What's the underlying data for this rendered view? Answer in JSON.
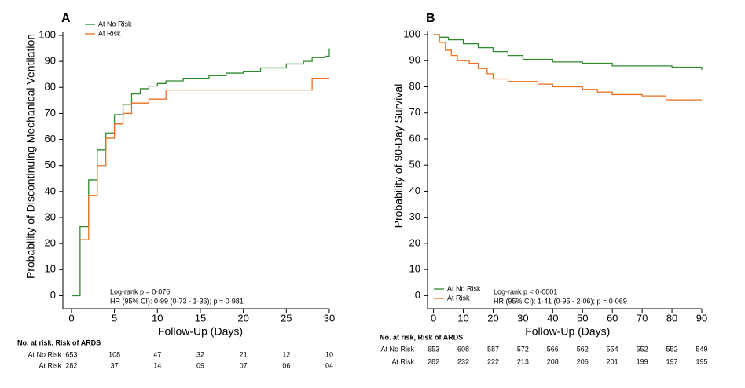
{
  "chart_data": [
    {
      "type": "step",
      "panel_label": "A",
      "x_label": "Follow-Up (Days)",
      "y_label": "Probability of Discontinuing Mechanical Ventilation",
      "xlim": [
        -1,
        30
      ],
      "ylim": [
        -5,
        100
      ],
      "xticks": [
        0,
        5,
        10,
        15,
        20,
        25,
        30
      ],
      "yticks": [
        0,
        10,
        20,
        30,
        40,
        50,
        60,
        70,
        80,
        90,
        100
      ],
      "legend": "top-left",
      "annotations": [
        "Log-rank p = 0·076",
        "HR (95% CI): 0·99 (0·73 - 1·36); p = 0·981"
      ],
      "series": [
        {
          "name": "At No Risk",
          "color": "#2e8b2e",
          "x": [
            0,
            1,
            2,
            3,
            4,
            5,
            6,
            7,
            8,
            9,
            10,
            11,
            13,
            16,
            18,
            20,
            22,
            25,
            27,
            28,
            29.5,
            30
          ],
          "values": [
            0,
            26.5,
            44.5,
            56,
            62.5,
            69.5,
            73.5,
            77.5,
            79.5,
            80.5,
            81.5,
            82.5,
            83.5,
            84.5,
            85.5,
            86,
            87.5,
            89,
            90,
            91.5,
            92,
            95
          ]
        },
        {
          "name": "At Risk",
          "color": "#e8701f",
          "x": [
            1,
            2,
            3,
            4,
            5,
            6,
            7,
            9,
            11,
            28,
            30
          ],
          "values": [
            21.5,
            38.5,
            50,
            60.5,
            66,
            70,
            74,
            75.5,
            79,
            83.5,
            83.5
          ]
        }
      ],
      "risk_table": {
        "title": "No. at risk, Risk of ARDS",
        "rows": [
          {
            "name": "At No Risk",
            "values": [
              "653",
              "108",
              "47",
              "32",
              "21",
              "12",
              "10"
            ]
          },
          {
            "name": "At Risk",
            "values": [
              "282",
              "37",
              "14",
              "09",
              "07",
              "06",
              "04"
            ]
          }
        ]
      }
    },
    {
      "type": "step",
      "panel_label": "B",
      "x_label": "Follow-Up (Days)",
      "y_label": "Probability of 90-Day Survival",
      "xlim": [
        -2,
        90
      ],
      "ylim": [
        -5,
        100
      ],
      "xticks": [
        0,
        10,
        20,
        30,
        40,
        50,
        60,
        70,
        80,
        90
      ],
      "yticks": [
        0,
        10,
        20,
        30,
        40,
        50,
        60,
        70,
        80,
        90,
        100
      ],
      "legend": "bottom-left",
      "annotations": [
        "Log-rank p < 0·0001",
        "HR (95% CI): 1·41 (0·95 - 2·06); p = 0·069"
      ],
      "series": [
        {
          "name": "At No Risk",
          "color": "#2e8b2e",
          "x": [
            0,
            2,
            5,
            10,
            15,
            20,
            25,
            30,
            40,
            50,
            60,
            80,
            88,
            90
          ],
          "values": [
            100,
            99,
            98,
            96.5,
            95,
            93.5,
            92,
            90.5,
            89.5,
            89,
            88,
            87.5,
            87.5,
            86.5
          ]
        },
        {
          "name": "At Risk",
          "color": "#e8701f",
          "x": [
            0,
            2,
            4,
            6,
            8,
            12,
            15,
            18,
            20,
            25,
            35,
            40,
            50,
            55,
            60,
            70,
            78,
            90
          ],
          "values": [
            100,
            97,
            94,
            92,
            90,
            89,
            87,
            85,
            83,
            82,
            81,
            80,
            79,
            78,
            77,
            76.5,
            75,
            75
          ]
        }
      ],
      "risk_table": {
        "title": "No. at risk, Risk of ARDS",
        "rows": [
          {
            "name": "At No Risk",
            "values": [
              "653",
              "608",
              "587",
              "572",
              "566",
              "562",
              "554",
              "552",
              "552",
              "549"
            ]
          },
          {
            "name": "At Risk",
            "values": [
              "282",
              "232",
              "222",
              "213",
              "208",
              "206",
              "201",
              "199",
              "197",
              "195"
            ]
          }
        ]
      }
    }
  ]
}
